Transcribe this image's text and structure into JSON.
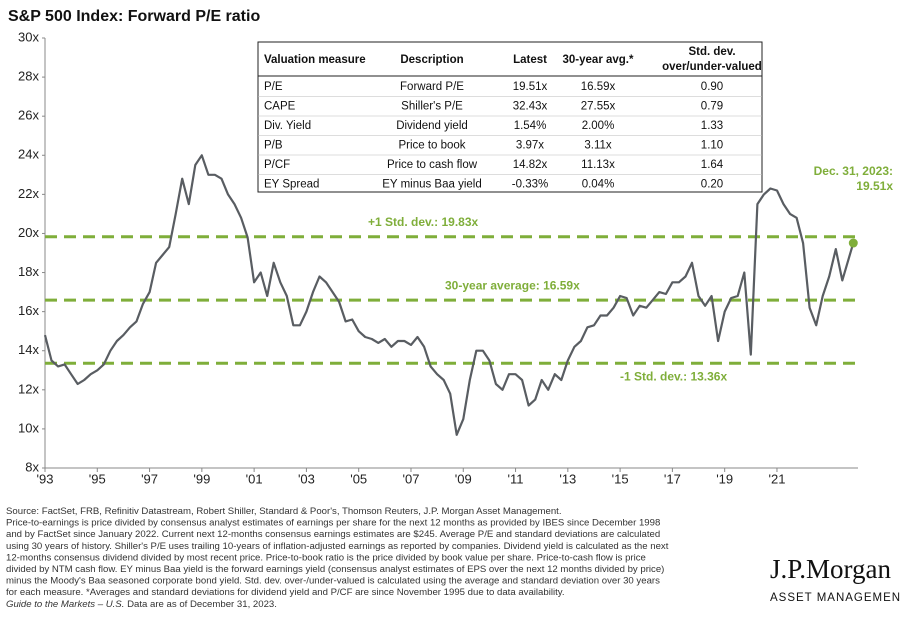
{
  "chart_data": {
    "type": "line",
    "title": "S&P 500 Index: Forward P/E ratio",
    "xlim": [
      1993,
      2024.1
    ],
    "ylim": [
      8,
      30
    ],
    "xticks": [
      {
        "value": 1993,
        "label": "'93"
      },
      {
        "value": 1995,
        "label": "'95"
      },
      {
        "value": 1997,
        "label": "'97"
      },
      {
        "value": 1999,
        "label": "'99"
      },
      {
        "value": 2001,
        "label": "'01"
      },
      {
        "value": 2003,
        "label": "'03"
      },
      {
        "value": 2005,
        "label": "'05"
      },
      {
        "value": 2007,
        "label": "'07"
      },
      {
        "value": 2009,
        "label": "'09"
      },
      {
        "value": 2011,
        "label": "'11"
      },
      {
        "value": 2013,
        "label": "'13"
      },
      {
        "value": 2015,
        "label": "'15"
      },
      {
        "value": 2017,
        "label": "'17"
      },
      {
        "value": 2019,
        "label": "'19"
      },
      {
        "value": 2021,
        "label": "'21"
      }
    ],
    "yticks": [
      {
        "value": 8,
        "label": "8x"
      },
      {
        "value": 10,
        "label": "10x"
      },
      {
        "value": 12,
        "label": "12x"
      },
      {
        "value": 14,
        "label": "14x"
      },
      {
        "value": 16,
        "label": "16x"
      },
      {
        "value": 18,
        "label": "18x"
      },
      {
        "value": 20,
        "label": "20x"
      },
      {
        "value": 22,
        "label": "22x"
      },
      {
        "value": 24,
        "label": "24x"
      },
      {
        "value": 26,
        "label": "26x"
      },
      {
        "value": 28,
        "label": "28x"
      },
      {
        "value": 30,
        "label": "30x"
      }
    ],
    "series": [
      {
        "name": "Forward P/E",
        "color": "#595d62",
        "x": [
          1993.0,
          1993.25,
          1993.5,
          1993.75,
          1994.0,
          1994.25,
          1994.5,
          1994.75,
          1995.0,
          1995.25,
          1995.5,
          1995.75,
          1996.0,
          1996.25,
          1996.5,
          1996.75,
          1997.0,
          1997.25,
          1997.5,
          1997.75,
          1998.0,
          1998.25,
          1998.5,
          1998.75,
          1999.0,
          1999.25,
          1999.5,
          1999.75,
          2000.0,
          2000.25,
          2000.5,
          2000.75,
          2001.0,
          2001.25,
          2001.5,
          2001.75,
          2002.0,
          2002.25,
          2002.5,
          2002.75,
          2003.0,
          2003.25,
          2003.5,
          2003.75,
          2004.0,
          2004.25,
          2004.5,
          2004.75,
          2005.0,
          2005.25,
          2005.5,
          2005.75,
          2006.0,
          2006.25,
          2006.5,
          2006.75,
          2007.0,
          2007.25,
          2007.5,
          2007.75,
          2008.0,
          2008.25,
          2008.5,
          2008.75,
          2009.0,
          2009.25,
          2009.5,
          2009.75,
          2010.0,
          2010.25,
          2010.5,
          2010.75,
          2011.0,
          2011.25,
          2011.5,
          2011.75,
          2012.0,
          2012.25,
          2012.5,
          2012.75,
          2013.0,
          2013.25,
          2013.5,
          2013.75,
          2014.0,
          2014.25,
          2014.5,
          2014.75,
          2015.0,
          2015.25,
          2015.5,
          2015.75,
          2016.0,
          2016.25,
          2016.5,
          2016.75,
          2017.0,
          2017.25,
          2017.5,
          2017.75,
          2018.0,
          2018.25,
          2018.5,
          2018.75,
          2019.0,
          2019.25,
          2019.5,
          2019.75,
          2020.0,
          2020.25,
          2020.5,
          2020.75,
          2021.0,
          2021.25,
          2021.5,
          2021.75,
          2022.0,
          2022.25,
          2022.5,
          2022.75,
          2023.0,
          2023.25,
          2023.5,
          2023.92
        ],
        "values": [
          14.8,
          13.5,
          13.2,
          13.3,
          12.8,
          12.3,
          12.5,
          12.8,
          13.0,
          13.3,
          14.0,
          14.5,
          14.8,
          15.2,
          15.5,
          16.4,
          17.0,
          18.5,
          18.9,
          19.3,
          21.0,
          22.8,
          21.5,
          23.5,
          24.0,
          23.0,
          23.0,
          22.8,
          22.0,
          21.5,
          20.8,
          19.8,
          17.5,
          18.0,
          16.8,
          18.5,
          17.5,
          16.8,
          15.3,
          15.3,
          16.0,
          17.0,
          17.8,
          17.5,
          17.0,
          16.5,
          15.5,
          15.6,
          15.0,
          14.7,
          14.6,
          14.4,
          14.6,
          14.2,
          14.5,
          14.5,
          14.3,
          14.7,
          14.2,
          13.2,
          12.8,
          12.5,
          11.8,
          9.7,
          10.5,
          12.5,
          14.0,
          14.0,
          13.5,
          12.3,
          12.0,
          12.8,
          12.8,
          12.5,
          11.2,
          11.5,
          12.5,
          12.0,
          12.8,
          12.5,
          13.5,
          14.2,
          14.5,
          15.2,
          15.3,
          15.8,
          15.8,
          16.2,
          16.8,
          16.7,
          15.8,
          16.3,
          16.2,
          16.6,
          17.0,
          16.9,
          17.5,
          17.5,
          17.8,
          18.5,
          16.8,
          16.3,
          16.8,
          14.5,
          16.0,
          16.7,
          16.8,
          18.0,
          13.8,
          21.5,
          22.0,
          22.3,
          22.2,
          21.5,
          21.0,
          20.8,
          19.5,
          16.2,
          15.3,
          16.8,
          17.8,
          19.2,
          17.6,
          19.51
        ]
      }
    ],
    "reference_lines": [
      {
        "label": "+1 Std. dev.: 19.83x",
        "value": 19.83
      },
      {
        "label": "30-year average: 16.59x",
        "value": 16.59
      },
      {
        "label": "-1 Std. dev.: 13.36x",
        "value": 13.36
      }
    ],
    "reference_color": "#7fae3a",
    "end_annotation": [
      "Dec. 31, 2023:",
      "19.51x"
    ],
    "table": {
      "header": [
        "Valuation measure",
        "Description",
        "Latest",
        "30-year avg.*",
        "Std. dev. over/under-valued"
      ],
      "rows": [
        [
          "P/E",
          "Forward P/E",
          "19.51x",
          "16.59x",
          "0.90"
        ],
        [
          "CAPE",
          "Shiller's P/E",
          "32.43x",
          "27.55x",
          "0.79"
        ],
        [
          "Div. Yield",
          "Dividend yield",
          "1.54%",
          "2.00%",
          "1.33"
        ],
        [
          "P/B",
          "Price to book",
          "3.97x",
          "3.11x",
          "1.10"
        ],
        [
          "P/CF",
          "Price to cash flow",
          "14.82x",
          "11.13x",
          "1.64"
        ],
        [
          "EY Spread",
          "EY minus Baa yield",
          "-0.33%",
          "0.04%",
          "0.20"
        ]
      ]
    }
  },
  "footnote": [
    "Source: FactSet, FRB, Refinitiv Datastream, Robert Shiller, Standard & Poor's, Thomson Reuters, J.P. Morgan Asset Management.",
    "Price-to-earnings is price divided by consensus analyst estimates of earnings per share for the next 12 months as provided by IBES since December 1998",
    "and by FactSet since January 2022. Current next 12-months consensus earnings estimates are $245. Average P/E and standard deviations are calculated",
    "using 30 years of history. Shiller's P/E uses trailing 10-years of inflation-adjusted earnings as reported by companies. Dividend yield is calculated as the next",
    "12-months consensus dividend divided by most recent price. Price-to-book ratio is the price divided by book value per share. Price-to-cash flow is price",
    "divided by NTM cash flow. EY minus Baa yield is the forward earnings yield (consensus analyst estimates of EPS over the next 12 months divided by price)",
    "minus the Moody's Baa seasoned corporate bond yield. Std. dev. over-/under-valued is calculated using the average and standard deviation over 30 years",
    "for each measure. *Averages and standard deviations for dividend yield and P/CF are since November 1995 due to data availability."
  ],
  "footnote_guide": "Guide to the Markets – U.S.",
  "footnote_asof": "Data are as of December 31, 2023.",
  "logo": {
    "name": "J.P.Morgan",
    "tagline": "ASSET MANAGEMENT"
  }
}
